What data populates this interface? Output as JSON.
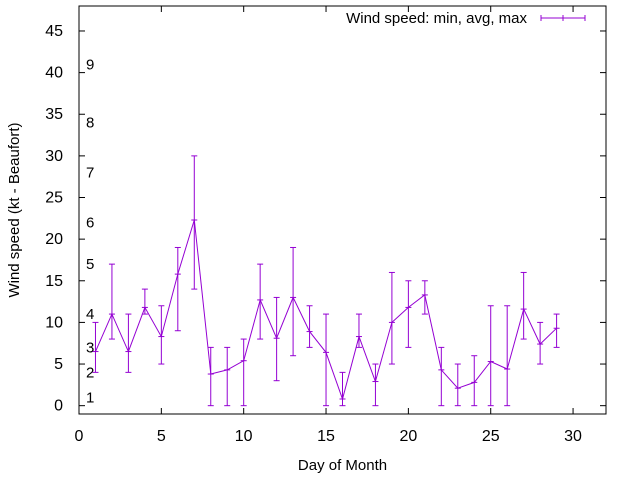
{
  "chart_data": {
    "type": "line",
    "title": "",
    "xlabel": "Day of Month",
    "ylabel": "Wind speed (kt - Beaufort)",
    "xlim": [
      0,
      32
    ],
    "ylim": [
      -1,
      48
    ],
    "xticks": [
      0,
      5,
      10,
      15,
      20,
      25,
      30
    ],
    "yticks": [
      0,
      5,
      10,
      15,
      20,
      25,
      30,
      35,
      40,
      45
    ],
    "grid": false,
    "legend_position": "top-right",
    "series": [
      {
        "name": "Wind speed: min, avg, max",
        "color": "#9400d3",
        "x": [
          1,
          2,
          3,
          4,
          5,
          6,
          7,
          8,
          9,
          10,
          11,
          12,
          13,
          14,
          15,
          16,
          17,
          18,
          19,
          20,
          21,
          22,
          23,
          24,
          25,
          26,
          27,
          28,
          29
        ],
        "avg": [
          6.5,
          11,
          6.5,
          11.8,
          8.3,
          15.8,
          22.3,
          3.8,
          4.3,
          5.4,
          12.7,
          8.1,
          13,
          8.9,
          6.4,
          0.8,
          8.3,
          2.9,
          10,
          11.8,
          13.3,
          4.3,
          2.1,
          2.8,
          5.3,
          4.4,
          11.6,
          7.4,
          9.3
        ],
        "min": [
          4,
          8,
          4,
          11,
          5,
          9,
          14,
          0,
          0,
          0,
          8,
          3,
          6,
          7,
          0,
          0,
          7,
          0,
          5,
          7,
          11,
          0,
          0,
          0,
          0,
          0,
          8,
          5,
          7
        ],
        "max": [
          10,
          17,
          11,
          14,
          12,
          19,
          30,
          7,
          7,
          8,
          17,
          13,
          19,
          12,
          11,
          4,
          11,
          5,
          16,
          15,
          15,
          7,
          5,
          6,
          12,
          12,
          16,
          10,
          11
        ]
      }
    ],
    "beaufort_labels": [
      {
        "label": "1",
        "y": 1
      },
      {
        "label": "2",
        "y": 4
      },
      {
        "label": "3",
        "y": 7
      },
      {
        "label": "4",
        "y": 11
      },
      {
        "label": "5",
        "y": 17
      },
      {
        "label": "6",
        "y": 22
      },
      {
        "label": "7",
        "y": 28
      },
      {
        "label": "8",
        "y": 34
      },
      {
        "label": "9",
        "y": 41
      }
    ]
  }
}
